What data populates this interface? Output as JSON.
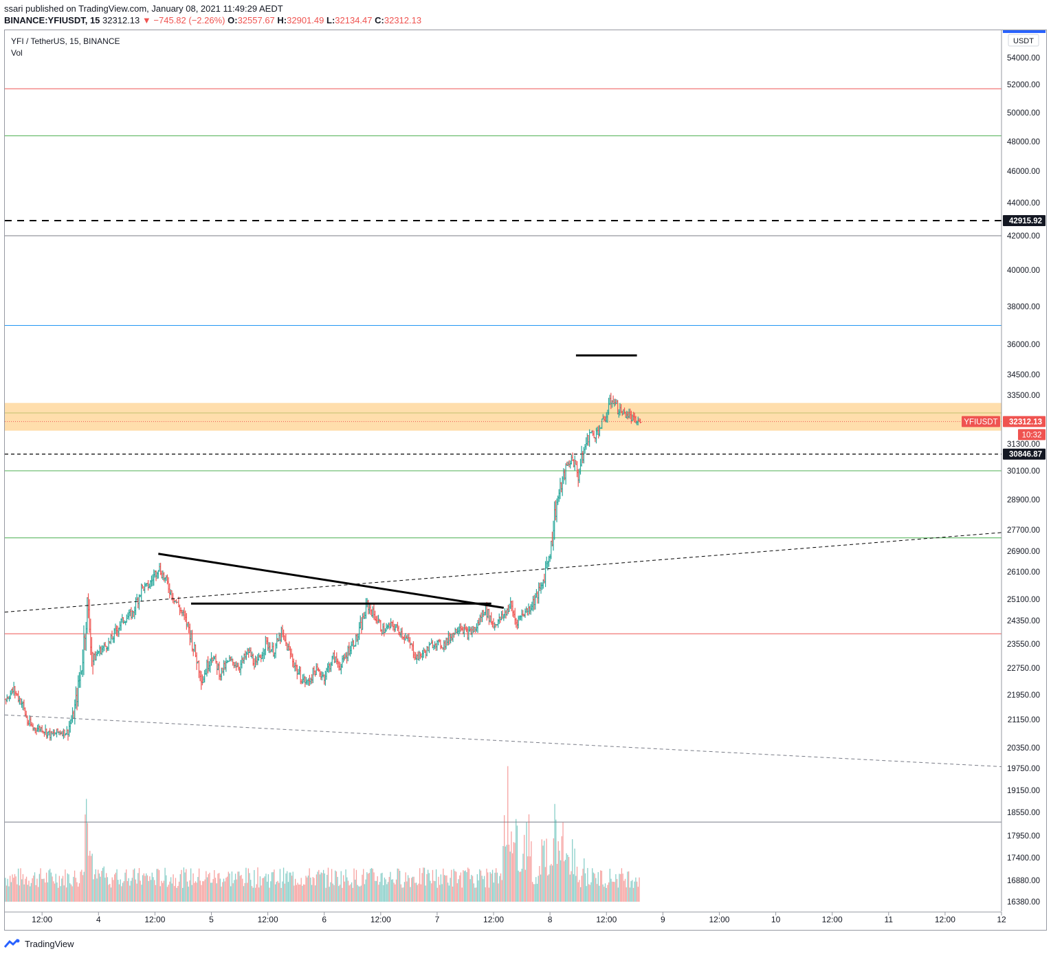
{
  "header": {
    "publisher": "ssari published on TradingView.com, January 08, 2021 11:49:29 AEDT",
    "symbol": "BINANCE:YFIUSDT, 15",
    "last": "32312.13",
    "change": "−745.82 (−2.26%)",
    "o_label": "O:",
    "o": "32557.67",
    "h_label": "H:",
    "h": "32901.49",
    "l_label": "L:",
    "l": "32134.47",
    "c_label": "C:",
    "c": "32312.13"
  },
  "legend": {
    "title": "YFI / TetherUS, 15, BINANCE",
    "vol": "Vol"
  },
  "footer": {
    "brand": "TradingView"
  },
  "colors": {
    "up": "#26a69a",
    "down": "#ef5350",
    "zone": "#ffcc80",
    "accent": "#2962ff"
  },
  "chart_data": {
    "type": "candlestick",
    "title": "",
    "currency": "USDT",
    "y_ticks": [
      54000,
      52000,
      50000,
      48000,
      46000,
      44000,
      42000,
      40000,
      38000,
      36000,
      34500,
      33500,
      31300,
      30100,
      28900,
      27700,
      26900,
      26100,
      25100,
      24350,
      23550,
      22750,
      21950,
      21150,
      20350,
      19750,
      19150,
      18550,
      17950,
      17400,
      16880,
      16380
    ],
    "y_tick_labels": [
      "54000.00",
      "52000.00",
      "50000.00",
      "48000.00",
      "46000.00",
      "44000.00",
      "42000.00",
      "40000.00",
      "38000.00",
      "36000.00",
      "34500.00",
      "33500.00",
      "31300.00",
      "30100.00",
      "28900.00",
      "27700.00",
      "26900.00",
      "26100.00",
      "25100.00",
      "24350.00",
      "23550.00",
      "22750.00",
      "21950.00",
      "21150.00",
      "20350.00",
      "19750.00",
      "19150.00",
      "18550.00",
      "17950.00",
      "17400.00",
      "16880.00",
      "16380.00"
    ],
    "x_tick_labels": [
      "12:00",
      "4",
      "12:00",
      "5",
      "12:00",
      "6",
      "12:00",
      "7",
      "12:00",
      "8",
      "12:00",
      "9",
      "12:00",
      "10",
      "12:00",
      "11",
      "12:00",
      "12"
    ],
    "x_ticks_day": [
      3.5,
      4,
      4.5,
      5,
      5.5,
      6,
      6.5,
      7,
      7.5,
      8,
      8.5,
      9,
      9.5,
      10,
      10.5,
      11,
      11.5,
      12
    ],
    "x_range_day": [
      3.17,
      12
    ],
    "price_badges": [
      {
        "label": "42915.92",
        "price": 42915.92,
        "style": "dark"
      },
      {
        "label": "30846.87",
        "price": 30846.87,
        "style": "dark"
      },
      {
        "label": "32312.13",
        "price": 32312.13,
        "style": "red",
        "name": "YFIUSDT"
      }
    ],
    "countdown": "10:32",
    "horizontal_lines": [
      {
        "price": 51700,
        "color": "#ef5350"
      },
      {
        "price": 48400,
        "color": "#4caf50"
      },
      {
        "price": 42000,
        "color": "#787b86"
      },
      {
        "price": 37000,
        "color": "#2196f3"
      },
      {
        "price": 32700,
        "color": "#4caf50"
      },
      {
        "price": 30100,
        "color": "#4caf50"
      },
      {
        "price": 27400,
        "color": "#4caf50"
      },
      {
        "price": 23900,
        "color": "#ef5350"
      },
      {
        "price": 18300,
        "color": "#787b86"
      }
    ],
    "dashed_levels": [
      42915.92,
      30846.87
    ],
    "zone": {
      "from": 31900,
      "to": 33150
    },
    "trend_lines": [
      {
        "x": [
          4.53,
          7.59
        ],
        "price": [
          26800,
          24800
        ],
        "width": 3
      },
      {
        "x": [
          4.82,
          7.48
        ],
        "price": [
          24950,
          24950
        ],
        "width": 3
      },
      {
        "x": [
          8.23,
          8.77
        ],
        "price": [
          35450,
          35450
        ],
        "width": 3
      },
      {
        "x": [
          3.17,
          12.0
        ],
        "price": [
          24650,
          27600
        ],
        "width": 1,
        "dash": true
      },
      {
        "x": [
          3.17,
          12.0
        ],
        "price": [
          21300,
          19800
        ],
        "width": 1,
        "dash": true,
        "color": "#787b86"
      }
    ],
    "price_path": [
      [
        3.17,
        21800
      ],
      [
        3.25,
        22100
      ],
      [
        3.32,
        21700
      ],
      [
        3.37,
        21100
      ],
      [
        3.42,
        20900
      ],
      [
        3.5,
        20900
      ],
      [
        3.58,
        20700
      ],
      [
        3.65,
        20800
      ],
      [
        3.72,
        20800
      ],
      [
        3.78,
        21300
      ],
      [
        3.85,
        22800
      ],
      [
        3.9,
        24900
      ],
      [
        3.95,
        23000
      ],
      [
        4.0,
        23300
      ],
      [
        4.1,
        23600
      ],
      [
        4.2,
        24300
      ],
      [
        4.3,
        24600
      ],
      [
        4.38,
        25500
      ],
      [
        4.45,
        25600
      ],
      [
        4.53,
        26300
      ],
      [
        4.58,
        25900
      ],
      [
        4.65,
        25300
      ],
      [
        4.73,
        24700
      ],
      [
        4.8,
        24100
      ],
      [
        4.85,
        23300
      ],
      [
        4.92,
        22400
      ],
      [
        5.0,
        23200
      ],
      [
        5.08,
        22600
      ],
      [
        5.16,
        23000
      ],
      [
        5.25,
        22800
      ],
      [
        5.33,
        23300
      ],
      [
        5.4,
        22800
      ],
      [
        5.48,
        23600
      ],
      [
        5.55,
        23300
      ],
      [
        5.62,
        23900
      ],
      [
        5.7,
        23200
      ],
      [
        5.78,
        22500
      ],
      [
        5.85,
        22300
      ],
      [
        5.92,
        22700
      ],
      [
        6.0,
        22500
      ],
      [
        6.08,
        23100
      ],
      [
        6.15,
        22800
      ],
      [
        6.22,
        23400
      ],
      [
        6.3,
        23800
      ],
      [
        6.38,
        24900
      ],
      [
        6.45,
        24500
      ],
      [
        6.52,
        24000
      ],
      [
        6.6,
        24200
      ],
      [
        6.67,
        24000
      ],
      [
        6.75,
        23600
      ],
      [
        6.82,
        23100
      ],
      [
        6.9,
        23300
      ],
      [
        6.97,
        23600
      ],
      [
        7.05,
        23500
      ],
      [
        7.12,
        23800
      ],
      [
        7.2,
        24200
      ],
      [
        7.27,
        23900
      ],
      [
        7.35,
        24100
      ],
      [
        7.42,
        24800
      ],
      [
        7.5,
        24200
      ],
      [
        7.56,
        24400
      ],
      [
        7.6,
        24600
      ],
      [
        7.65,
        24900
      ],
      [
        7.7,
        24300
      ],
      [
        7.76,
        24600
      ],
      [
        7.82,
        24800
      ],
      [
        7.88,
        25200
      ],
      [
        7.93,
        25600
      ],
      [
        7.97,
        26400
      ],
      [
        8.01,
        27100
      ],
      [
        8.05,
        28600
      ],
      [
        8.1,
        29500
      ],
      [
        8.15,
        30300
      ],
      [
        8.2,
        30700
      ],
      [
        8.25,
        29900
      ],
      [
        8.3,
        31000
      ],
      [
        8.35,
        31800
      ],
      [
        8.4,
        31700
      ],
      [
        8.45,
        32100
      ],
      [
        8.5,
        32600
      ],
      [
        8.55,
        33400
      ],
      [
        8.6,
        32900
      ],
      [
        8.65,
        32700
      ],
      [
        8.7,
        32600
      ],
      [
        8.75,
        32300
      ],
      [
        8.8,
        32312.13
      ]
    ],
    "volume_scale_max": 1,
    "volume_profile": [
      {
        "x": 3.9,
        "v": 0.82
      },
      {
        "x": 4.05,
        "v": 0.25
      },
      {
        "x": 4.25,
        "v": 0.22
      },
      {
        "x": 7.3,
        "v": 0.2
      },
      {
        "x": 7.62,
        "v": 0.9
      },
      {
        "x": 7.7,
        "v": 0.6
      },
      {
        "x": 7.8,
        "v": 0.7
      },
      {
        "x": 7.95,
        "v": 0.55
      },
      {
        "x": 8.05,
        "v": 0.75
      },
      {
        "x": 8.12,
        "v": 0.6
      },
      {
        "x": 8.2,
        "v": 0.5
      },
      {
        "x": 8.3,
        "v": 0.35
      }
    ],
    "grid": false,
    "legend_position": "top-left"
  }
}
